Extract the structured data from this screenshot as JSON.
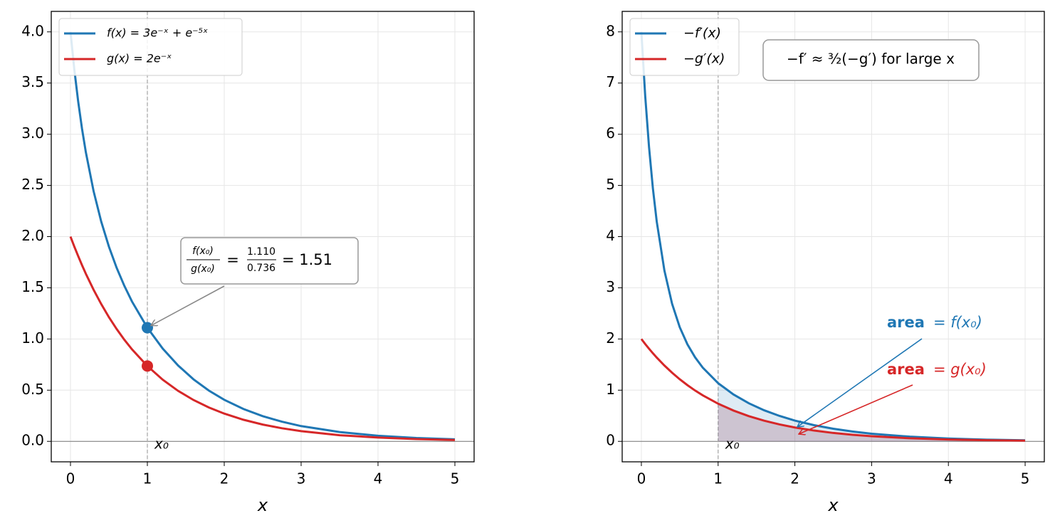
{
  "chart_data": [
    {
      "type": "line",
      "xlabel": "x",
      "xlim": [
        -0.25,
        5.25
      ],
      "ylim": [
        -0.2,
        4.2
      ],
      "xticks": [
        0,
        1,
        2,
        3,
        4,
        5
      ],
      "yticks": [
        {
          "value": 0,
          "label": "0.0"
        },
        0.5,
        {
          "value": 1,
          "label": "1.0"
        },
        1.5,
        {
          "value": 2,
          "label": "2.0"
        },
        2.5,
        {
          "value": 3,
          "label": "3.0"
        },
        3.5,
        {
          "value": 4,
          "label": "4.0"
        }
      ],
      "grid": true,
      "legend": "upper left",
      "x0": 1,
      "x0_label": "x₀",
      "x": [
        0,
        0.05,
        0.1,
        0.15,
        0.2,
        0.3,
        0.4,
        0.5,
        0.6,
        0.7,
        0.8,
        1,
        1.2,
        1.4,
        1.6,
        1.8,
        2,
        2.25,
        2.5,
        2.75,
        3,
        3.5,
        4,
        4.5,
        5
      ],
      "series": [
        {
          "name": "f(x) = 3e⁻ˣ + e⁻⁵ˣ",
          "color": "#1f77b4",
          "values": [
            4.0,
            3.632,
            3.321,
            3.054,
            2.824,
            2.446,
            2.146,
            1.902,
            1.696,
            1.52,
            1.366,
            1.11,
            0.906,
            0.741,
            0.606,
            0.496,
            0.406,
            0.316,
            0.246,
            0.192,
            0.149,
            0.091,
            0.055,
            0.033,
            0.02
          ]
        },
        {
          "name": "g(x) = 2e⁻ˣ",
          "color": "#d62728",
          "values": [
            2.0,
            1.902,
            1.81,
            1.721,
            1.637,
            1.482,
            1.341,
            1.213,
            1.098,
            0.993,
            0.899,
            0.736,
            0.602,
            0.493,
            0.404,
            0.331,
            0.271,
            0.211,
            0.164,
            0.128,
            0.1,
            0.06,
            0.037,
            0.022,
            0.013
          ]
        }
      ],
      "markers": [
        {
          "x": 1,
          "y": 1.11,
          "color": "#1f77b4"
        },
        {
          "x": 1,
          "y": 0.736,
          "color": "#d62728"
        }
      ],
      "annotation": {
        "num": "f(x₀)",
        "den": "g(x₀)",
        "eq": "=",
        "num_value": "1.110",
        "den_value": "0.736",
        "result": "= 1.51"
      }
    },
    {
      "type": "line",
      "xlabel": "x",
      "xlim": [
        -0.25,
        5.25
      ],
      "ylim": [
        -0.4,
        8.4
      ],
      "xticks": [
        0,
        1,
        2,
        3,
        4,
        5
      ],
      "yticks": [
        0,
        1,
        2,
        3,
        4,
        5,
        6,
        7,
        8
      ],
      "grid": true,
      "legend": "upper left",
      "x0": 1,
      "x0_label": "x₀",
      "shade_from_x0": true,
      "x": [
        0,
        0.05,
        0.1,
        0.15,
        0.2,
        0.3,
        0.4,
        0.5,
        0.6,
        0.7,
        0.8,
        1,
        1.2,
        1.4,
        1.6,
        1.8,
        2,
        2.25,
        2.5,
        2.75,
        3,
        3.5,
        4,
        4.5,
        5
      ],
      "series": [
        {
          "name": "−f′(x)",
          "color": "#1f77b4",
          "values": [
            8.0,
            6.748,
            5.747,
            4.944,
            4.296,
            3.338,
            2.688,
            2.23,
            1.895,
            1.641,
            1.44,
            1.137,
            0.916,
            0.744,
            0.607,
            0.497,
            0.406,
            0.316,
            0.246,
            0.192,
            0.149,
            0.091,
            0.055,
            0.033,
            0.02
          ]
        },
        {
          "name": "−g′(x)",
          "color": "#d62728",
          "values": [
            2.0,
            1.902,
            1.81,
            1.721,
            1.637,
            1.482,
            1.341,
            1.213,
            1.098,
            0.993,
            0.899,
            0.736,
            0.602,
            0.493,
            0.404,
            0.331,
            0.271,
            0.211,
            0.164,
            0.128,
            0.1,
            0.06,
            0.037,
            0.022,
            0.013
          ]
        }
      ],
      "note": "−f′ ≈ ³⁄₂(−g′) for large x",
      "area_labels": [
        {
          "bold": "area",
          "text": "= f(x₀)",
          "color": "#1f77b4"
        },
        {
          "bold": "area",
          "text": "= g(x₀)",
          "color": "#d62728"
        }
      ]
    }
  ]
}
